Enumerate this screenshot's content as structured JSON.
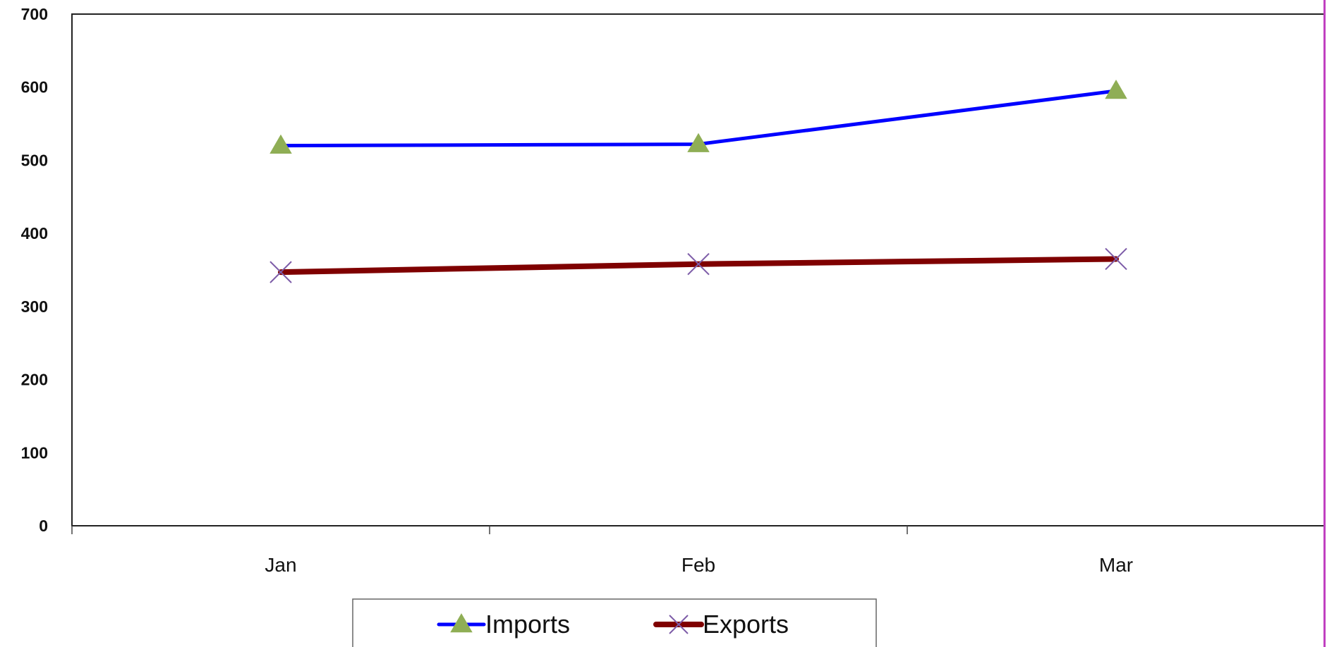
{
  "chart_data": {
    "type": "line",
    "categories": [
      "Jan",
      "Feb",
      "Mar"
    ],
    "series": [
      {
        "name": "Imports",
        "values": [
          520,
          522,
          595
        ],
        "color": "#0000ff",
        "marker": "triangle",
        "marker_color": "#8fae55"
      },
      {
        "name": "Exports",
        "values": [
          347,
          358,
          365
        ],
        "color": "#7f0000",
        "marker": "x",
        "marker_color": "#7d5ca8"
      }
    ],
    "yticks": [
      "0",
      "100",
      "200",
      "300",
      "400",
      "500",
      "600",
      "700"
    ],
    "ylim": [
      0,
      700
    ],
    "grid": false,
    "legend_position": "bottom"
  }
}
